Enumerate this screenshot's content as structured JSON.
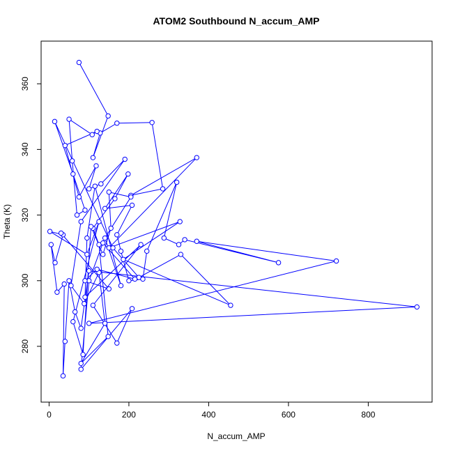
{
  "chart_data": {
    "type": "line",
    "title": "ATOM2 Southbound N_accum_AMP",
    "xlabel": "N_accum_AMP",
    "ylabel": "Theta (K)",
    "xlim": [
      -20,
      960
    ],
    "ylim": [
      263,
      373
    ],
    "xticks": [
      0,
      200,
      400,
      600,
      800
    ],
    "yticks": [
      280,
      300,
      320,
      340,
      360
    ],
    "grid": false,
    "series": [
      {
        "color": "#0000ff",
        "marker": "open-circle",
        "points": [
          [
            75,
            366.5
          ],
          [
            148,
            350.2
          ],
          [
            110,
            337.5
          ],
          [
            128,
            345
          ],
          [
            170,
            348
          ],
          [
            258,
            348.2
          ],
          [
            285,
            328
          ],
          [
            205,
            326
          ],
          [
            370,
            337.5
          ],
          [
            150,
            310
          ],
          [
            328,
            318
          ],
          [
            186,
            306.5
          ],
          [
            455,
            292.5
          ],
          [
            330,
            308
          ],
          [
            225,
            301
          ],
          [
            160,
            310
          ],
          [
            14,
            348.5
          ],
          [
            60,
            332.5
          ],
          [
            90,
            321.5
          ],
          [
            70,
            320
          ],
          [
            58,
            336.5
          ],
          [
            50,
            349.2
          ],
          [
            108,
            344.5
          ],
          [
            120,
            345.5
          ],
          [
            40,
            341.2
          ],
          [
            75,
            325.5
          ],
          [
            118,
            335
          ],
          [
            100,
            328
          ],
          [
            130,
            329.5
          ],
          [
            190,
            337
          ],
          [
            80,
            318
          ],
          [
            55,
            298.5
          ],
          [
            88,
            293
          ],
          [
            125,
            302.5
          ],
          [
            140,
            287
          ],
          [
            80,
            274.8
          ],
          [
            148,
            283
          ],
          [
            125,
            311
          ],
          [
            110,
            316
          ],
          [
            165,
            325
          ],
          [
            198,
            332.5
          ],
          [
            140,
            322
          ],
          [
            208,
            323
          ],
          [
            170,
            314
          ],
          [
            180,
            309
          ],
          [
            200,
            300
          ],
          [
            235,
            300.5
          ],
          [
            245,
            309
          ],
          [
            320,
            330
          ],
          [
            288,
            313
          ],
          [
            325,
            311
          ],
          [
            340,
            312.5
          ],
          [
            575,
            305.5
          ],
          [
            370,
            312
          ],
          [
            720,
            306
          ],
          [
            100,
            287
          ],
          [
            922,
            292
          ],
          [
            100,
            303
          ],
          [
            80,
            285.5
          ],
          [
            65,
            290.5
          ],
          [
            50,
            300
          ],
          [
            40,
            281.5
          ],
          [
            35,
            271
          ],
          [
            38,
            299
          ],
          [
            20,
            296.5
          ],
          [
            5,
            311
          ],
          [
            15,
            305.5
          ],
          [
            35,
            314
          ],
          [
            2,
            315
          ],
          [
            95,
            308
          ],
          [
            125,
            318
          ],
          [
            60,
            287.5
          ],
          [
            85,
            277.5
          ],
          [
            105,
            316.5
          ],
          [
            135,
            308
          ],
          [
            155,
            316
          ],
          [
            150,
            327
          ],
          [
            205,
            325.5
          ],
          [
            140,
            313
          ],
          [
            180,
            298.5
          ],
          [
            115,
            328.8
          ],
          [
            95,
            313
          ],
          [
            90,
            295
          ],
          [
            230,
            311
          ],
          [
            110,
            292.5
          ],
          [
            170,
            281
          ],
          [
            208,
            291.5
          ],
          [
            80,
            273
          ],
          [
            100,
            300
          ],
          [
            135,
            311.5
          ],
          [
            215,
            300.5
          ],
          [
            120,
            303.5
          ],
          [
            90,
            300
          ],
          [
            150,
            297.5
          ],
          [
            30,
            314.5
          ]
        ]
      }
    ]
  }
}
